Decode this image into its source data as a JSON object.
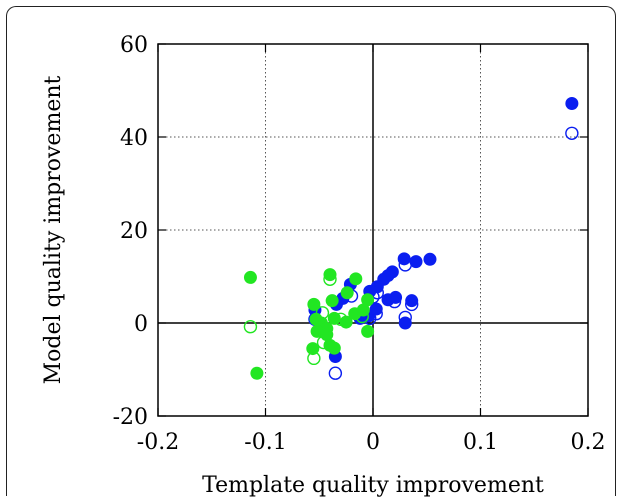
{
  "chart_data": {
    "type": "scatter",
    "title": "",
    "xlabel": "Template quality improvement",
    "ylabel": "Model quality improvement",
    "xlim": [
      -0.2,
      0.2
    ],
    "ylim": [
      -20,
      60
    ],
    "x_ticks": [
      "-0.2",
      "-0.1",
      "0",
      "0.1",
      "0.2"
    ],
    "y_ticks": [
      "-20",
      "0",
      "20",
      "40",
      "60"
    ],
    "x_tick_values": [
      -0.2,
      -0.1,
      0,
      0.1,
      0.2
    ],
    "y_tick_values": [
      -20,
      0,
      20,
      40,
      60
    ],
    "grid": true,
    "grid_style": "dotted",
    "zero_lines": true,
    "legend": "none",
    "series": [
      {
        "color": "#0a1ef0",
        "marker": "filled-circle",
        "points": [
          [
            0.185,
            47.2
          ],
          [
            0.053,
            13.7
          ],
          [
            0.04,
            13.2
          ],
          [
            0.029,
            13.8
          ],
          [
            0.018,
            11.0
          ],
          [
            0.014,
            10.2
          ],
          [
            0.01,
            9.4
          ],
          [
            0.03,
            0.0
          ],
          [
            0.036,
            4.8
          ],
          [
            0.021,
            5.5
          ],
          [
            0.014,
            5.0
          ],
          [
            0.004,
            7.8
          ],
          [
            -0.003,
            6.8
          ],
          [
            -0.021,
            8.3
          ],
          [
            -0.028,
            5.3
          ],
          [
            -0.034,
            4.0
          ],
          [
            -0.012,
            1.0
          ],
          [
            -0.004,
            1.5
          ],
          [
            0.003,
            3.0
          ],
          [
            -0.054,
            2.8
          ],
          [
            -0.035,
            -7.2
          ]
        ]
      },
      {
        "color": "#0a1ef0",
        "marker": "open-circle",
        "points": [
          [
            0.185,
            40.8
          ],
          [
            0.03,
            12.5
          ],
          [
            0.03,
            1.2
          ],
          [
            0.036,
            4.0
          ],
          [
            0.02,
            4.6
          ],
          [
            0.004,
            6.5
          ],
          [
            0.0,
            5.6
          ],
          [
            -0.02,
            5.8
          ],
          [
            -0.003,
            1.0
          ],
          [
            0.003,
            2.0
          ],
          [
            -0.054,
            0.8
          ],
          [
            -0.035,
            -10.8
          ]
        ]
      },
      {
        "color": "#22e622",
        "marker": "filled-circle",
        "points": [
          [
            -0.114,
            9.8
          ],
          [
            -0.108,
            -10.8
          ],
          [
            -0.04,
            10.4
          ],
          [
            -0.016,
            9.5
          ],
          [
            -0.055,
            4.0
          ],
          [
            -0.038,
            4.8
          ],
          [
            -0.024,
            6.5
          ],
          [
            -0.005,
            5.0
          ],
          [
            -0.053,
            0.8
          ],
          [
            -0.048,
            0.0
          ],
          [
            -0.043,
            -1.2
          ],
          [
            -0.036,
            1.0
          ],
          [
            -0.025,
            0.2
          ],
          [
            -0.017,
            2.0
          ],
          [
            -0.009,
            2.8
          ],
          [
            -0.052,
            -1.8
          ],
          [
            -0.043,
            -2.5
          ],
          [
            -0.005,
            -1.8
          ],
          [
            -0.056,
            -5.5
          ],
          [
            -0.036,
            -5.4
          ],
          [
            -0.04,
            -4.8
          ]
        ]
      },
      {
        "color": "#22e622",
        "marker": "open-circle",
        "points": [
          [
            -0.114,
            -0.8
          ],
          [
            -0.04,
            9.4
          ],
          [
            -0.055,
            -7.6
          ],
          [
            -0.046,
            -4.2
          ],
          [
            -0.03,
            0.8
          ],
          [
            -0.01,
            1.4
          ],
          [
            -0.047,
            2.2
          ]
        ]
      }
    ]
  }
}
